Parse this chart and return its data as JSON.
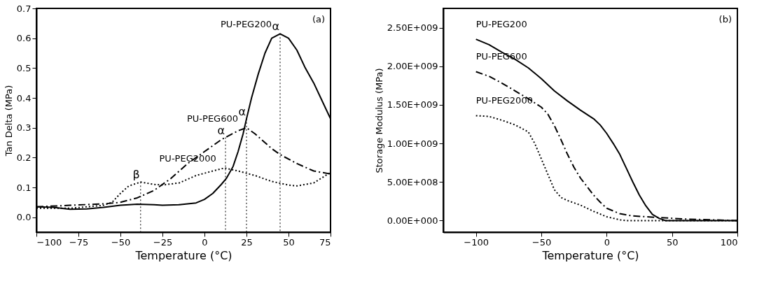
{
  "chart_data": [
    {
      "type": "line",
      "xlabel": "Temperature (°C)",
      "ylabel": "Tan Delta (MPa)",
      "xlim": [
        -100,
        75
      ],
      "xticks": [
        -100,
        -75,
        -50,
        -25,
        0,
        25,
        50,
        75
      ],
      "ylim": [
        -0.05,
        0.7
      ],
      "yticks": [
        {
          "value": 0,
          "label": "0.0"
        },
        0.1,
        0.2,
        0.3,
        0.4,
        0.5,
        0.6,
        0.7
      ],
      "grid": false,
      "marker": "none",
      "series": [
        {
          "name": "PU-PEG200",
          "color": "#000000",
          "line_style": "solid",
          "x": [
            -100,
            -90,
            -80,
            -70,
            -60,
            -50,
            -40,
            -30,
            -25,
            -15,
            -5,
            0,
            5,
            10,
            13,
            17,
            20,
            23,
            25,
            28,
            32,
            36,
            40,
            45,
            50,
            55,
            60,
            65,
            70,
            75
          ],
          "values": [
            0.035,
            0.033,
            0.027,
            0.028,
            0.033,
            0.04,
            0.044,
            0.042,
            0.04,
            0.042,
            0.048,
            0.06,
            0.08,
            0.11,
            0.13,
            0.17,
            0.22,
            0.28,
            0.33,
            0.4,
            0.48,
            0.55,
            0.6,
            0.615,
            0.6,
            0.56,
            0.5,
            0.45,
            0.39,
            0.33
          ]
        },
        {
          "name": "PU-PEG600",
          "color": "#000000",
          "line_style": "dashdot",
          "x": [
            -100,
            -80,
            -60,
            -50,
            -40,
            -30,
            -20,
            -10,
            0,
            10,
            20,
            25,
            30,
            40,
            45,
            55,
            65,
            75
          ],
          "values": [
            0.035,
            0.04,
            0.045,
            0.05,
            0.065,
            0.09,
            0.13,
            0.18,
            0.22,
            0.26,
            0.29,
            0.3,
            0.28,
            0.23,
            0.21,
            0.18,
            0.155,
            0.145
          ]
        },
        {
          "name": "PU-PEG2000",
          "color": "#000000",
          "line_style": "dotted",
          "x": [
            -100,
            -80,
            -60,
            -55,
            -50,
            -45,
            -38,
            -30,
            -25,
            -15,
            -5,
            5,
            12,
            20,
            30,
            40,
            50,
            55,
            65,
            75
          ],
          "values": [
            0.03,
            0.03,
            0.04,
            0.05,
            0.08,
            0.105,
            0.118,
            0.11,
            0.108,
            0.115,
            0.14,
            0.155,
            0.165,
            0.155,
            0.14,
            0.12,
            0.108,
            0.105,
            0.115,
            0.15
          ]
        }
      ],
      "ref_lines": [
        {
          "axis": "x",
          "value": -38,
          "label": "β",
          "line_style": "dotted"
        },
        {
          "axis": "x",
          "value": 12.5,
          "label": "α",
          "line_style": "dotted"
        },
        {
          "axis": "x",
          "value": 25,
          "label": "α",
          "line_style": "dotted"
        },
        {
          "axis": "x",
          "value": 45,
          "label": "α",
          "line_style": "dotted"
        }
      ],
      "annotations": [
        "(a)"
      ]
    },
    {
      "type": "line",
      "xlabel": "Temperature (°C)",
      "ylabel": "Storage Modulus (MPa)",
      "xlim": [
        -125,
        100
      ],
      "xticks": [
        -100,
        -50,
        0,
        50,
        100
      ],
      "ylim": [
        -150000000,
        2750000000
      ],
      "yticks": [
        {
          "value": 0,
          "label": "0.00E+000"
        },
        {
          "value": 500000000,
          "label": "5.00E+008"
        },
        {
          "value": 1000000000,
          "label": "1.00E+009"
        },
        {
          "value": 1500000000,
          "label": "1.50E+009"
        },
        {
          "value": 2000000000,
          "label": "2.00E+009"
        },
        {
          "value": 2500000000,
          "label": "2.50E+009"
        }
      ],
      "grid": false,
      "marker": "none",
      "series": [
        {
          "name": "PU-PEG200",
          "color": "#000000",
          "line_style": "solid",
          "x": [
            -100,
            -90,
            -80,
            -70,
            -60,
            -50,
            -40,
            -30,
            -20,
            -10,
            -5,
            0,
            5,
            10,
            15,
            20,
            25,
            30,
            35,
            40,
            45,
            60,
            100
          ],
          "values": [
            2350000000,
            2280000000,
            2180000000,
            2090000000,
            1980000000,
            1840000000,
            1680000000,
            1550000000,
            1430000000,
            1320000000,
            1240000000,
            1130000000,
            1000000000,
            860000000,
            680000000,
            500000000,
            330000000,
            190000000,
            80000000,
            30000000,
            0,
            0,
            0
          ]
        },
        {
          "name": "PU-PEG600",
          "color": "#000000",
          "line_style": "dashdot",
          "x": [
            -100,
            -90,
            -80,
            -70,
            -60,
            -50,
            -45,
            -40,
            -35,
            -30,
            -25,
            -20,
            -15,
            -10,
            -5,
            0,
            10,
            20,
            30,
            40,
            60,
            80,
            100
          ],
          "values": [
            1930000000,
            1870000000,
            1780000000,
            1680000000,
            1580000000,
            1470000000,
            1380000000,
            1230000000,
            1050000000,
            860000000,
            690000000,
            550000000,
            440000000,
            330000000,
            240000000,
            160000000,
            90000000,
            60000000,
            50000000,
            40000000,
            20000000,
            10000000,
            0
          ]
        },
        {
          "name": "PU-PEG2000",
          "color": "#000000",
          "line_style": "dotted",
          "x": [
            -100,
            -90,
            -80,
            -70,
            -60,
            -55,
            -50,
            -45,
            -40,
            -35,
            -30,
            -20,
            -10,
            0,
            10,
            15,
            100
          ],
          "values": [
            1360000000,
            1350000000,
            1300000000,
            1240000000,
            1150000000,
            1000000000,
            800000000,
            600000000,
            400000000,
            300000000,
            260000000,
            200000000,
            120000000,
            50000000,
            10000000,
            0,
            0
          ]
        }
      ],
      "annotations": [
        "(b)"
      ]
    }
  ]
}
